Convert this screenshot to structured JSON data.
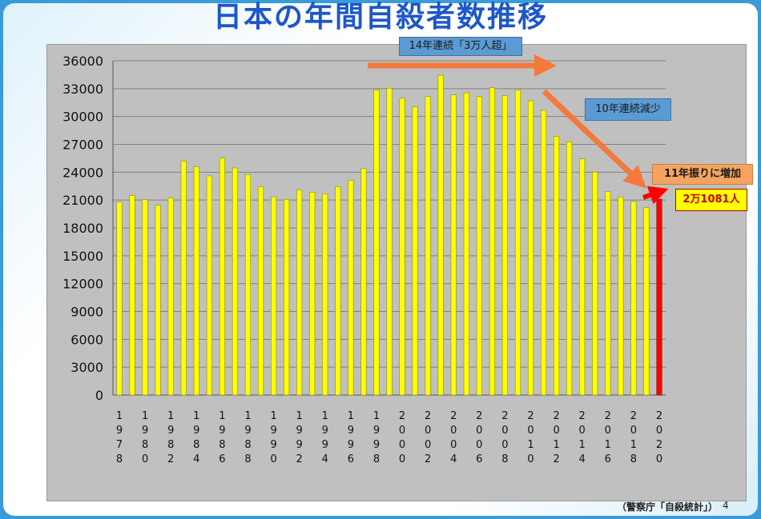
{
  "title": "日本の年間自殺者数推移",
  "source": "（警察庁「自殺統計」）",
  "page_number": "4",
  "annotations": {
    "streak_above": "14年連続「3万人超」",
    "decline": "10年連続減少",
    "increase": "11年振りに増加",
    "latest_value": "2万1081人"
  },
  "colors": {
    "bar": "#ffff00",
    "bar_highlight": "#ff0000",
    "plot_bg": "#c0c0c0",
    "arrow": "#f4793a"
  },
  "chart_data": {
    "type": "bar",
    "title": "日本の年間自殺者数推移",
    "xlabel": "",
    "ylabel": "",
    "ylim": [
      0,
      36000
    ],
    "yticks": [
      0,
      3000,
      6000,
      9000,
      12000,
      15000,
      18000,
      21000,
      24000,
      27000,
      30000,
      33000,
      36000
    ],
    "grid": true,
    "categories": [
      "1978",
      "1979",
      "1980",
      "1981",
      "1982",
      "1983",
      "1984",
      "1985",
      "1986",
      "1987",
      "1988",
      "1989",
      "1990",
      "1991",
      "1992",
      "1993",
      "1994",
      "1995",
      "1996",
      "1997",
      "1998",
      "1999",
      "2000",
      "2001",
      "2002",
      "2003",
      "2004",
      "2005",
      "2006",
      "2007",
      "2008",
      "2009",
      "2010",
      "2011",
      "2012",
      "2013",
      "2014",
      "2015",
      "2016",
      "2017",
      "2018",
      "2019",
      "2020"
    ],
    "tick_labels": [
      "1978",
      "",
      "1980",
      "",
      "1982",
      "",
      "1984",
      "",
      "1986",
      "",
      "1988",
      "",
      "1990",
      "",
      "1992",
      "",
      "1994",
      "",
      "1996",
      "",
      "1998",
      "",
      "2000",
      "",
      "2002",
      "",
      "2004",
      "",
      "2006",
      "",
      "2008",
      "",
      "2010",
      "",
      "2012",
      "",
      "2014",
      "",
      "2016",
      "",
      "2018",
      "",
      "2020"
    ],
    "values": [
      20788,
      21503,
      21048,
      20434,
      21228,
      25202,
      24596,
      23599,
      25524,
      24460,
      23742,
      22436,
      21346,
      21084,
      22104,
      21851,
      21679,
      22445,
      23104,
      24391,
      32863,
      33048,
      31957,
      31042,
      32143,
      34427,
      32325,
      32552,
      32155,
      33093,
      32249,
      32845,
      31690,
      30651,
      27858,
      27283,
      25427,
      24025,
      21897,
      21321,
      20840,
      20169,
      21081
    ],
    "highlight_index": 42
  }
}
